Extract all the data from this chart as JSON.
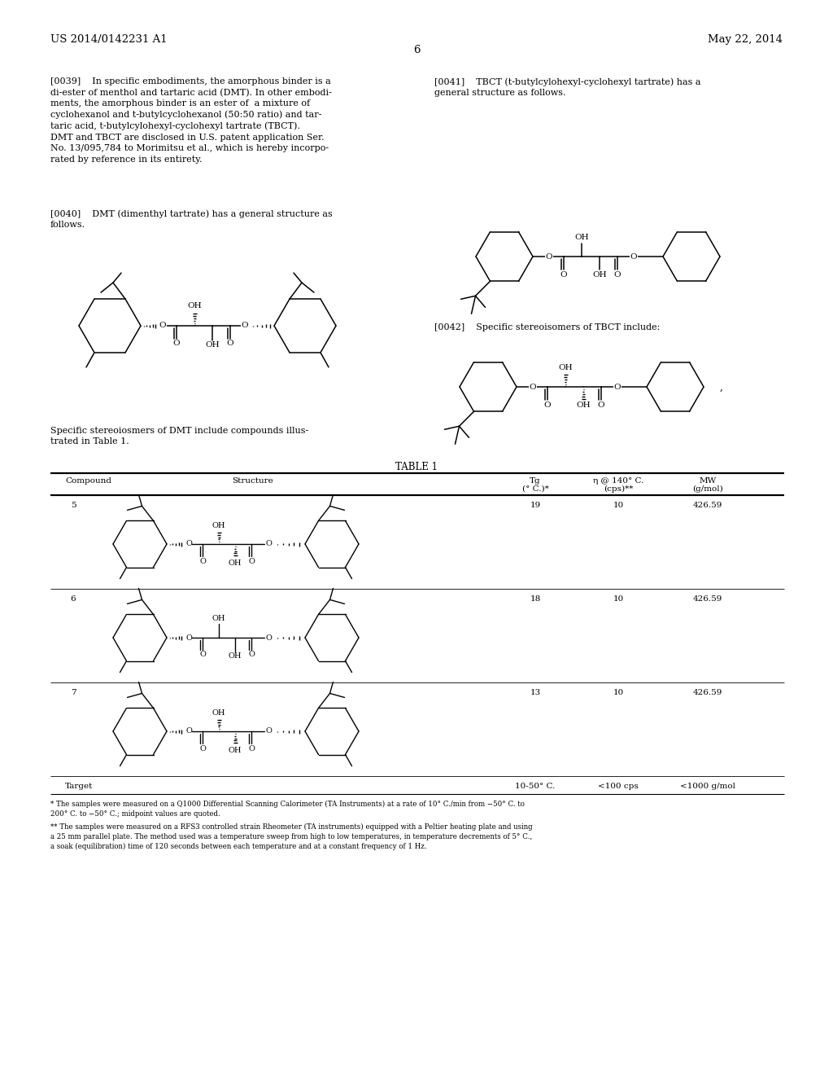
{
  "bg": "#ffffff",
  "header_left": "US 2014/0142231 A1",
  "header_right": "May 22, 2014",
  "page_number": "6",
  "para0039": "[0039]    In specific embodiments, the amorphous binder is a\ndi-ester of menthol and tartaric acid (DMT). In other embodi-\nments, the amorphous binder is an ester of  a mixture of\ncyclohexanol and t-butylcyclohexanol (50:50 ratio) and tar-\ntaric acid, t-butylcylohexyl-cyclohexyl tartrate (TBCT).\nDMT and TBCT are disclosed in U.S. patent application Ser.\nNo. 13/095,784 to Morimitsu et al., which is hereby incorpo-\nrated by reference in its entirety.",
  "para0040": "[0040]    DMT (dimenthyl tartrate) has a general structure as\nfollows.",
  "stereo_dmt": "Specific stereoiosmers of DMT include compounds illus-\ntrated in Table 1.",
  "para0041": "[0041]    TBCT (t-butylcylohexyl-cyclohexyl tartrate) has a\ngeneral structure as follows.",
  "para0042": "[0042]    Specific stereoisomers of TBCT include:",
  "table_title": "TABLE 1",
  "col_compound": "Compound",
  "col_structure": "Structure",
  "col_tg": "Tg",
  "col_tg2": "(° C.)*",
  "col_eta": "η @ 140° C.",
  "col_eta2": "(cps)**",
  "col_mw": "MW",
  "col_mw2": "(g/mol)",
  "rows": [
    {
      "cmp": "5",
      "tg": "19",
      "eta": "10",
      "mw": "426.59"
    },
    {
      "cmp": "6",
      "tg": "18",
      "eta": "10",
      "mw": "426.59"
    },
    {
      "cmp": "7",
      "tg": "13",
      "eta": "10",
      "mw": "426.59"
    }
  ],
  "target_cmp": "Target",
  "target_tg": "10-50° C.",
  "target_eta": "<100 cps",
  "target_mw": "<1000 g/mol",
  "fn1": "* The samples were measured on a Q1000 Differential Scanning Calorimeter (TA Instruments) at a rate of 10° C./min from −50° C. to\n200° C. to −50° C.; midpoint values are quoted.",
  "fn2": "** The samples were measured on a RFS3 controlled strain Rheometer (TA instruments) equipped with a Peltier heating plate and using\na 25 mm parallel plate. The method used was a temperature sweep from high to low temperatures, in temperature decrements of 5° C.,\na soak (equilibration) time of 120 seconds between each temperature and at a constant frequency of 1 Hz."
}
